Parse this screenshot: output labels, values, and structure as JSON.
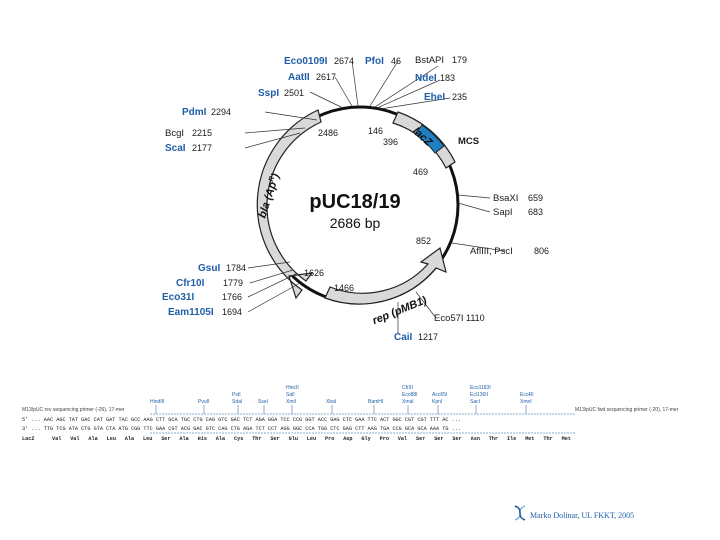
{
  "plasmid": {
    "name": "pUC18/19",
    "size": "2686 bp"
  },
  "features": {
    "lacz": "lacZ",
    "mcs": "MCS",
    "bla": "bla (Ap",
    "bla_sup": "R",
    "bla_close": ")",
    "rep": "rep (pMB1)"
  },
  "sites": [
    {
      "name": "Eco0109I",
      "pos": "2674",
      "blue": true
    },
    {
      "name": "PfoI",
      "pos": "46",
      "blue": true
    },
    {
      "name": "BstAPI",
      "pos": "179",
      "blue": false
    },
    {
      "name": "AatII",
      "pos": "2617",
      "blue": true
    },
    {
      "name": "NdeI",
      "pos": "183",
      "blue": true
    },
    {
      "name": "SspI",
      "pos": "2501",
      "blue": true
    },
    {
      "name": "EheI",
      "pos": "235",
      "blue": true
    },
    {
      "name": "PdmI",
      "pos": "2294",
      "blue": true
    },
    {
      "name": "BcgI",
      "pos": "2215",
      "blue": false
    },
    {
      "name": "ScaI",
      "pos": "2177",
      "blue": true
    },
    {
      "name": "BsaXI",
      "pos": "659",
      "blue": false
    },
    {
      "name": "SapI",
      "pos": "683",
      "blue": false
    },
    {
      "name": "AflIII, PscI",
      "pos": "806",
      "blue": false
    },
    {
      "name": "GsuI",
      "pos": "1784",
      "blue": true
    },
    {
      "name": "Cfr10I",
      "pos": "1779",
      "blue": true
    },
    {
      "name": "Eco31I",
      "pos": "1766",
      "blue": true
    },
    {
      "name": "Eam1105I",
      "pos": "1694",
      "blue": true
    },
    {
      "name": "Eco57I",
      "pos": "1110",
      "blue": false
    },
    {
      "name": "CaiI",
      "pos": "1217",
      "blue": true
    }
  ],
  "inner_numbers": [
    "2486",
    "146",
    "396",
    "469",
    "852",
    "1626",
    "1466"
  ],
  "sequence": {
    "header_left": "M13/pUC rev sequencing primer (-26), 17-mer",
    "header_right": "M13/pUC fwd sequencing primer (-20), 17-mer",
    "strand5": "5' ... AAC AGC TAT GAC CAT GAT TAC GCC AAG CTT GCA TGC CTG CAG GTC GAC TCT AGA GGA TCC CCG GGT ACC GAG CTC GAA TTC ACT GGC CGT CGT TTT AC ...",
    "strand3": "3' ... TTG TCG ATA CTG GTA CTA ATG CGG TTC GAA CGT ACG GAC GTC CAG CTG AGA TCT CCT AGG GGC CCA TGG CTC GAG CTT AAG TGA CCG GCA GCA AAA TG ...",
    "lacz_label": "LacZ",
    "aa": [
      "Val",
      "Val",
      "Ala",
      "Leu",
      "Ala",
      "Leu",
      "Ser",
      "Ala",
      "His",
      "Ala",
      "Cys",
      "Thr",
      "Ser",
      "Glu",
      "Leu",
      "Pro",
      "Asp",
      "Gly",
      "Pro",
      "Val",
      "Ser",
      "Ser",
      "Ser",
      "Asn",
      "Thr",
      "Ile",
      "Met",
      "Thr",
      "Met"
    ],
    "enzymes": [
      {
        "top": "",
        "mid": "",
        "bot": "HindIII"
      },
      {
        "top": "",
        "mid": "",
        "bot": "PvuII"
      },
      {
        "top": "",
        "mid": "PstI",
        "bot": "SdaI"
      },
      {
        "top": "",
        "mid": "",
        "bot": "SseI"
      },
      {
        "top": "HincII",
        "mid": "SalI",
        "bot": "XmiI"
      },
      {
        "top": "",
        "mid": "",
        "bot": "XbaI"
      },
      {
        "top": "",
        "mid": "",
        "bot": "BamHI"
      },
      {
        "top": "Cfr9I",
        "mid": "Eco88I",
        "bot": "XmaI"
      },
      {
        "top": "",
        "mid": "Acc65I",
        "bot": "KpnI"
      },
      {
        "top": "Eco1183I",
        "mid": "Ecl136II",
        "bot": "SacI"
      },
      {
        "top": "",
        "mid": "EcoRI",
        "bot": "XmnI"
      }
    ]
  },
  "credit": "Marko Dolinar, UL FKKT, 2005"
}
